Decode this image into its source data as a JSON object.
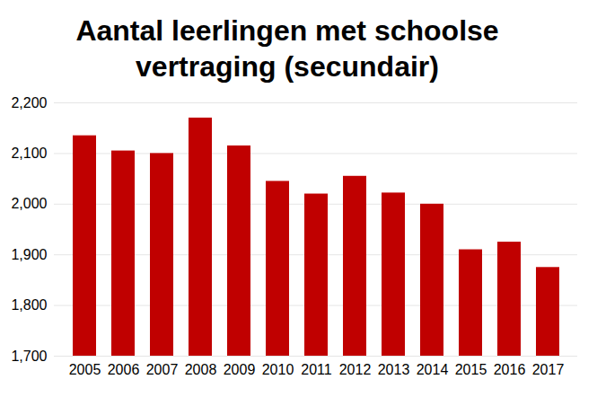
{
  "chart_data": {
    "type": "bar",
    "title": "Aantal leerlingen met schoolse vertraging (secundair)",
    "categories": [
      "2005",
      "2006",
      "2007",
      "2008",
      "2009",
      "2010",
      "2011",
      "2012",
      "2013",
      "2014",
      "2015",
      "2016",
      "2017"
    ],
    "values": [
      2135,
      2105,
      2100,
      2170,
      2115,
      2045,
      2020,
      2055,
      2022,
      2000,
      1910,
      1925,
      1875
    ],
    "color": "#c00000",
    "ylim": [
      1700,
      2200
    ],
    "yticks": [
      1700,
      1800,
      1900,
      2000,
      2100,
      2200
    ],
    "grid": true
  }
}
